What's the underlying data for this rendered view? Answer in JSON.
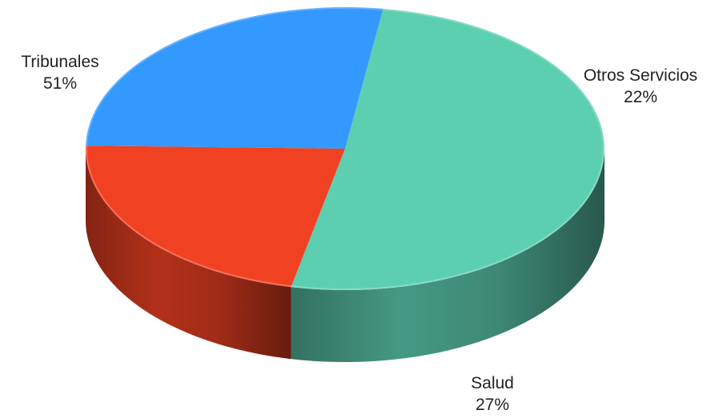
{
  "chart_data": {
    "type": "pie",
    "style": "3d",
    "slices": [
      {
        "label": "Tribunales",
        "value": 51,
        "display": "51%",
        "color": "#5dcfb1"
      },
      {
        "label": "Otros Servicios",
        "value": 22,
        "display": "22%",
        "color": "#f14123"
      },
      {
        "label": "Salud",
        "value": 27,
        "display": "27%",
        "color": "#3399ff"
      }
    ],
    "title": "",
    "legend": "none"
  }
}
